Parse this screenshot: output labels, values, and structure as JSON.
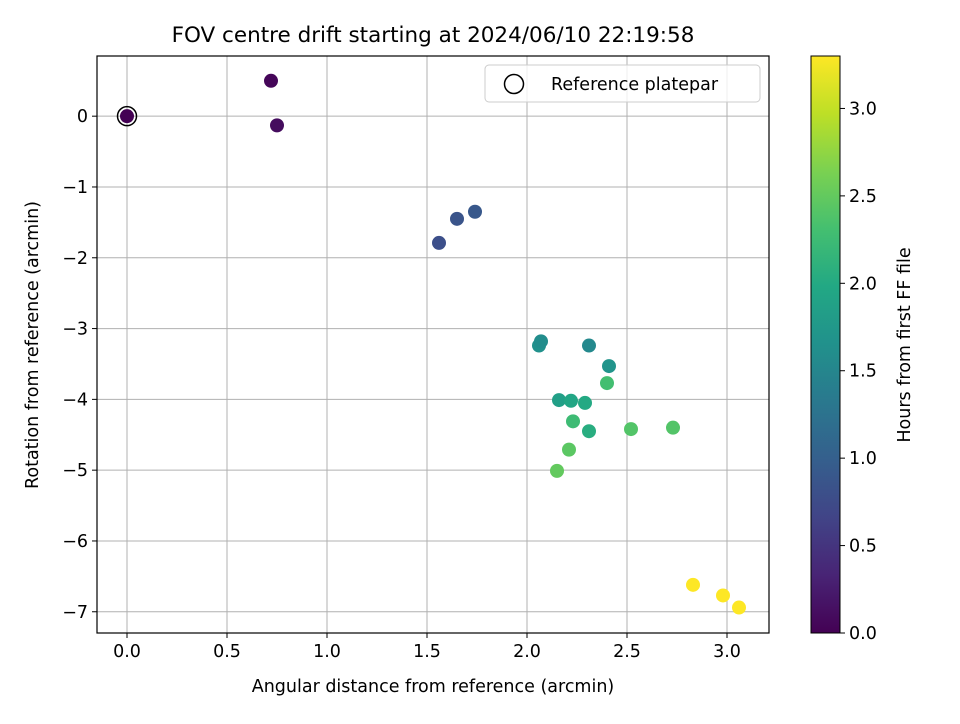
{
  "chart_data": {
    "type": "scatter",
    "title": "FOV centre drift starting at 2024/06/10 22:19:58",
    "xlabel": "Angular distance from reference (arcmin)",
    "ylabel": "Rotation from reference (arcmin)",
    "xlim": [
      -0.15,
      3.21
    ],
    "ylim": [
      -7.3,
      0.85
    ],
    "xticks": [
      0.0,
      0.5,
      1.0,
      1.5,
      2.0,
      2.5,
      3.0
    ],
    "xtick_labels": [
      "0.0",
      "0.5",
      "1.0",
      "1.5",
      "2.0",
      "2.5",
      "3.0"
    ],
    "yticks": [
      0,
      -1,
      -2,
      -3,
      -4,
      -5,
      -6,
      -7
    ],
    "ytick_labels": [
      "0",
      "−1",
      "−2",
      "−3",
      "−4",
      "−5",
      "−6",
      "−7"
    ],
    "grid": true,
    "legend": {
      "position": "top-right",
      "entries": [
        "Reference platepar"
      ]
    },
    "colorbar": {
      "label": "Hours from first FF file",
      "colormap": "viridis",
      "range": [
        0.0,
        3.3
      ],
      "ticks": [
        0.0,
        0.5,
        1.0,
        1.5,
        2.0,
        2.5,
        3.0
      ],
      "tick_labels": [
        "0.0",
        "0.5",
        "1.0",
        "1.5",
        "2.0",
        "2.5",
        "3.0"
      ]
    },
    "reference_point": {
      "x": 0.0,
      "y": 0.0
    },
    "points": [
      {
        "x": 0.0,
        "y": 0.0,
        "c": 0.0
      },
      {
        "x": 0.72,
        "y": 0.5,
        "c": 0.05
      },
      {
        "x": 0.75,
        "y": -0.13,
        "c": 0.1
      },
      {
        "x": 1.56,
        "y": -1.79,
        "c": 0.8
      },
      {
        "x": 1.65,
        "y": -1.45,
        "c": 0.85
      },
      {
        "x": 1.74,
        "y": -1.35,
        "c": 0.9
      },
      {
        "x": 2.06,
        "y": -3.24,
        "c": 1.65
      },
      {
        "x": 2.07,
        "y": -3.18,
        "c": 1.6
      },
      {
        "x": 2.31,
        "y": -3.24,
        "c": 1.55
      },
      {
        "x": 2.41,
        "y": -3.53,
        "c": 1.7
      },
      {
        "x": 2.16,
        "y": -4.01,
        "c": 1.85
      },
      {
        "x": 2.22,
        "y": -4.02,
        "c": 1.95
      },
      {
        "x": 2.29,
        "y": -4.05,
        "c": 2.0
      },
      {
        "x": 2.4,
        "y": -3.77,
        "c": 2.3
      },
      {
        "x": 2.23,
        "y": -4.31,
        "c": 2.25
      },
      {
        "x": 2.31,
        "y": -4.45,
        "c": 2.05
      },
      {
        "x": 2.52,
        "y": -4.42,
        "c": 2.4
      },
      {
        "x": 2.73,
        "y": -4.4,
        "c": 2.4
      },
      {
        "x": 2.21,
        "y": -4.71,
        "c": 2.45
      },
      {
        "x": 2.15,
        "y": -5.01,
        "c": 2.5
      },
      {
        "x": 2.83,
        "y": -6.62,
        "c": 3.3
      },
      {
        "x": 2.98,
        "y": -6.77,
        "c": 3.3
      },
      {
        "x": 3.06,
        "y": -6.94,
        "c": 3.3
      }
    ]
  }
}
